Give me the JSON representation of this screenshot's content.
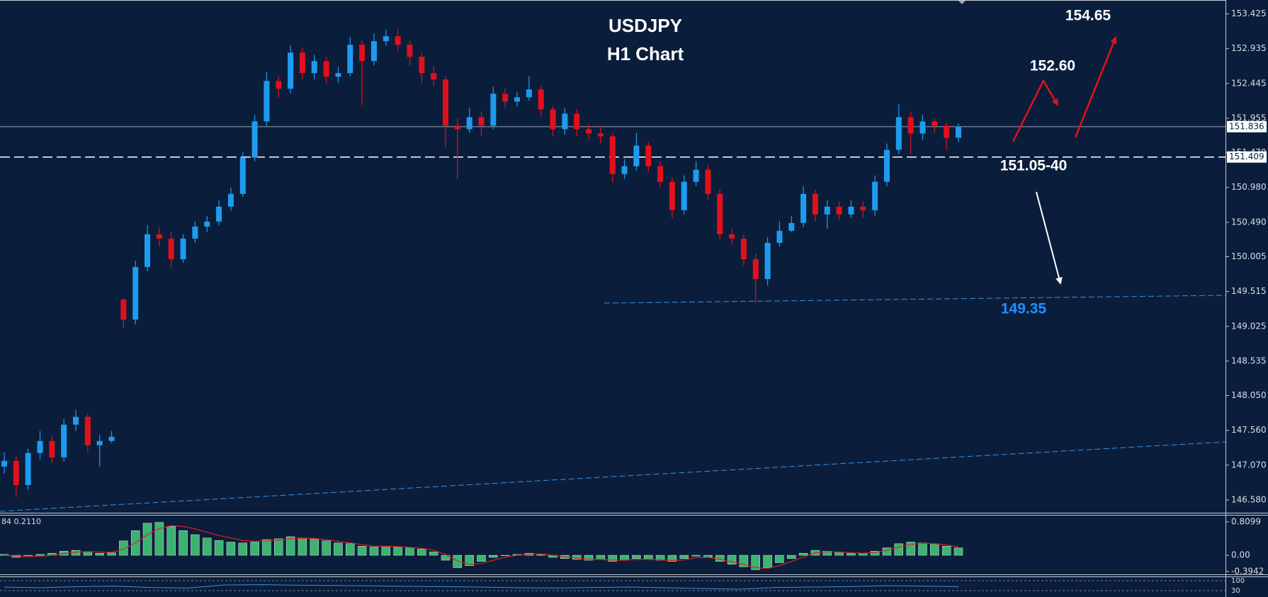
{
  "chart_data": {
    "type": "candlestick",
    "title": "USDJPY",
    "subtitle": "H1 Chart",
    "up_color": "#1e9bef",
    "down_color": "#e3101c",
    "ylim": [
      146.4,
      153.62
    ],
    "yticks": [
      {
        "value": 146.58,
        "label": "146.580"
      },
      {
        "value": 147.07,
        "label": "147.070"
      },
      {
        "value": 147.56,
        "label": "147.560"
      },
      {
        "value": 148.05,
        "label": "148.050"
      },
      148.535,
      149.025,
      149.515,
      150.005,
      {
        "value": 150.49,
        "label": "150.490"
      },
      {
        "value": 150.98,
        "label": "150.980"
      },
      {
        "value": 151.47,
        "label": "151.470"
      },
      151.955,
      152.445,
      152.935,
      153.425
    ],
    "current_price": 151.836,
    "level_line": 151.409,
    "annotations": [
      "154.65",
      "152.60",
      "151.05-40",
      "149.35"
    ],
    "annotation_colors": [
      "#ffffff",
      "#ffffff",
      "#ffffff",
      "#1e90ff"
    ],
    "candles": [
      [
        147.05,
        147.25,
        146.95,
        147.13
      ],
      [
        147.13,
        147.2,
        146.62,
        146.79
      ],
      [
        146.79,
        147.3,
        146.72,
        147.24
      ],
      [
        147.24,
        147.55,
        147.15,
        147.41
      ],
      [
        147.41,
        147.48,
        147.1,
        147.18
      ],
      [
        147.18,
        147.72,
        147.12,
        147.64
      ],
      [
        147.64,
        147.85,
        147.55,
        147.75
      ],
      [
        147.75,
        147.8,
        147.25,
        147.35
      ],
      [
        147.35,
        147.5,
        147.05,
        147.41
      ],
      [
        147.41,
        147.55,
        147.38,
        147.47
      ],
      [
        149.4,
        149.42,
        149.0,
        149.12
      ],
      [
        149.12,
        149.95,
        149.05,
        149.86
      ],
      [
        149.86,
        150.45,
        149.8,
        150.32
      ],
      [
        150.32,
        150.42,
        150.15,
        150.26
      ],
      [
        150.26,
        150.35,
        149.85,
        149.97
      ],
      [
        149.97,
        150.32,
        149.92,
        150.26
      ],
      [
        150.26,
        150.5,
        150.2,
        150.43
      ],
      [
        150.43,
        150.58,
        150.35,
        150.5
      ],
      [
        150.5,
        150.8,
        150.45,
        150.71
      ],
      [
        150.71,
        150.98,
        150.65,
        150.89
      ],
      [
        150.89,
        151.48,
        150.85,
        151.4
      ],
      [
        151.4,
        152.0,
        151.35,
        151.91
      ],
      [
        151.91,
        152.6,
        151.85,
        152.48
      ],
      [
        152.48,
        152.55,
        152.25,
        152.37
      ],
      [
        152.37,
        152.98,
        152.3,
        152.88
      ],
      [
        152.88,
        152.95,
        152.5,
        152.59
      ],
      [
        152.59,
        152.85,
        152.5,
        152.76
      ],
      [
        152.76,
        152.82,
        152.45,
        152.54
      ],
      [
        152.54,
        152.68,
        152.45,
        152.59
      ],
      [
        152.59,
        153.1,
        152.55,
        152.99
      ],
      [
        152.99,
        153.05,
        152.14,
        152.76
      ],
      [
        152.76,
        153.15,
        152.7,
        153.04
      ],
      [
        153.04,
        153.2,
        152.98,
        153.11
      ],
      [
        153.11,
        153.22,
        152.9,
        152.99
      ],
      [
        152.99,
        153.05,
        152.7,
        152.82
      ],
      [
        152.82,
        152.88,
        152.45,
        152.59
      ],
      [
        152.59,
        152.68,
        152.4,
        152.5
      ],
      [
        152.5,
        152.55,
        151.55,
        151.85
      ],
      [
        151.85,
        151.95,
        151.1,
        151.8
      ],
      [
        151.8,
        152.1,
        151.75,
        151.97
      ],
      [
        151.97,
        152.05,
        151.7,
        151.85
      ],
      [
        151.85,
        152.4,
        151.8,
        152.3
      ],
      [
        152.3,
        152.38,
        152.1,
        152.19
      ],
      [
        152.19,
        152.32,
        152.12,
        152.25
      ],
      [
        152.25,
        152.55,
        152.2,
        152.36
      ],
      [
        152.36,
        152.42,
        151.98,
        152.08
      ],
      [
        152.08,
        152.12,
        151.7,
        151.8
      ],
      [
        151.8,
        152.1,
        151.72,
        152.02
      ],
      [
        152.02,
        152.08,
        151.7,
        151.8
      ],
      [
        151.8,
        151.88,
        151.65,
        151.74
      ],
      [
        151.74,
        151.85,
        151.6,
        151.7
      ],
      [
        151.7,
        151.75,
        151.05,
        151.17
      ],
      [
        151.17,
        151.38,
        151.1,
        151.28
      ],
      [
        151.28,
        151.75,
        151.22,
        151.57
      ],
      [
        151.57,
        151.62,
        151.2,
        151.28
      ],
      [
        151.28,
        151.35,
        150.98,
        151.06
      ],
      [
        151.06,
        151.12,
        150.55,
        150.66
      ],
      [
        150.66,
        151.15,
        150.6,
        151.06
      ],
      [
        151.06,
        151.35,
        151.0,
        151.23
      ],
      [
        151.23,
        151.3,
        150.8,
        150.89
      ],
      [
        150.89,
        150.95,
        150.25,
        150.32
      ],
      [
        150.32,
        150.4,
        150.18,
        150.26
      ],
      [
        150.26,
        150.32,
        149.88,
        149.97
      ],
      [
        149.97,
        150.05,
        149.35,
        149.69
      ],
      [
        149.69,
        150.28,
        149.6,
        150.2
      ],
      [
        150.2,
        150.5,
        150.15,
        150.37
      ],
      [
        150.37,
        150.58,
        150.35,
        150.48
      ],
      [
        150.48,
        151.0,
        150.42,
        150.89
      ],
      [
        150.89,
        150.95,
        150.5,
        150.6
      ],
      [
        150.6,
        150.8,
        150.4,
        150.71
      ],
      [
        150.71,
        150.78,
        150.52,
        150.6
      ],
      [
        150.6,
        150.8,
        150.55,
        150.71
      ],
      [
        150.71,
        150.78,
        150.55,
        150.66
      ],
      [
        150.66,
        151.15,
        150.58,
        151.06
      ],
      [
        151.06,
        151.6,
        151.0,
        151.51
      ],
      [
        151.51,
        152.15,
        151.45,
        151.97
      ],
      [
        151.97,
        152.05,
        151.45,
        151.74
      ],
      [
        151.74,
        152.0,
        151.65,
        151.91
      ],
      [
        151.91,
        151.95,
        151.75,
        151.85
      ],
      [
        151.85,
        151.9,
        151.5,
        151.68
      ],
      [
        151.68,
        151.88,
        151.62,
        151.84
      ]
    ],
    "macd": {
      "label": "84 0.2110",
      "histogram_color": "#3cb371",
      "signal_color": "#e0201c",
      "ylim": [
        -0.463,
        0.964
      ],
      "yticks": [
        -0.3942,
        {
          "value": 0,
          "label": "0.00"
        },
        0.8099
      ],
      "histogram": [
        0.02,
        -0.05,
        -0.03,
        0.02,
        0.05,
        0.1,
        0.12,
        0.08,
        0.05,
        0.06,
        0.35,
        0.6,
        0.78,
        0.8,
        0.7,
        0.6,
        0.5,
        0.42,
        0.36,
        0.32,
        0.3,
        0.32,
        0.38,
        0.4,
        0.45,
        0.42,
        0.4,
        0.35,
        0.3,
        0.28,
        0.22,
        0.2,
        0.22,
        0.2,
        0.18,
        0.15,
        0.08,
        -0.12,
        -0.3,
        -0.25,
        -0.15,
        -0.05,
        0.0,
        0.02,
        0.05,
        0.02,
        -0.05,
        -0.08,
        -0.1,
        -0.12,
        -0.1,
        -0.15,
        -0.12,
        -0.08,
        -0.1,
        -0.12,
        -0.15,
        -0.08,
        -0.02,
        -0.05,
        -0.15,
        -0.22,
        -0.28,
        -0.35,
        -0.3,
        -0.18,
        -0.08,
        0.05,
        0.12,
        0.1,
        0.08,
        0.05,
        0.05,
        0.1,
        0.18,
        0.28,
        0.32,
        0.3,
        0.28,
        0.22,
        0.18
      ],
      "signal": [
        0.0,
        -0.02,
        -0.03,
        -0.02,
        0.0,
        0.04,
        0.08,
        0.09,
        0.08,
        0.07,
        0.15,
        0.3,
        0.5,
        0.65,
        0.72,
        0.7,
        0.64,
        0.56,
        0.48,
        0.42,
        0.36,
        0.34,
        0.35,
        0.37,
        0.4,
        0.41,
        0.41,
        0.38,
        0.34,
        0.3,
        0.26,
        0.22,
        0.22,
        0.21,
        0.19,
        0.17,
        0.12,
        0.02,
        -0.14,
        -0.22,
        -0.2,
        -0.12,
        -0.05,
        0.0,
        0.03,
        0.03,
        0.0,
        -0.04,
        -0.07,
        -0.1,
        -0.1,
        -0.12,
        -0.12,
        -0.1,
        -0.1,
        -0.11,
        -0.13,
        -0.11,
        -0.06,
        -0.05,
        -0.1,
        -0.16,
        -0.22,
        -0.3,
        -0.32,
        -0.25,
        -0.15,
        -0.04,
        0.06,
        0.09,
        0.08,
        0.06,
        0.05,
        0.07,
        0.12,
        0.2,
        0.26,
        0.29,
        0.28,
        0.25,
        0.2
      ]
    },
    "rsi": {
      "color": "#3f8fe0",
      "ylim": [
        0,
        100
      ],
      "yticks": [
        30,
        100
      ],
      "values": [
        55,
        50,
        58,
        62,
        52,
        48,
        70,
        72,
        68,
        66,
        64,
        60,
        58,
        55,
        50,
        48,
        52,
        55,
        50,
        45,
        40,
        52,
        55,
        58,
        65,
        62,
        58
      ]
    }
  }
}
